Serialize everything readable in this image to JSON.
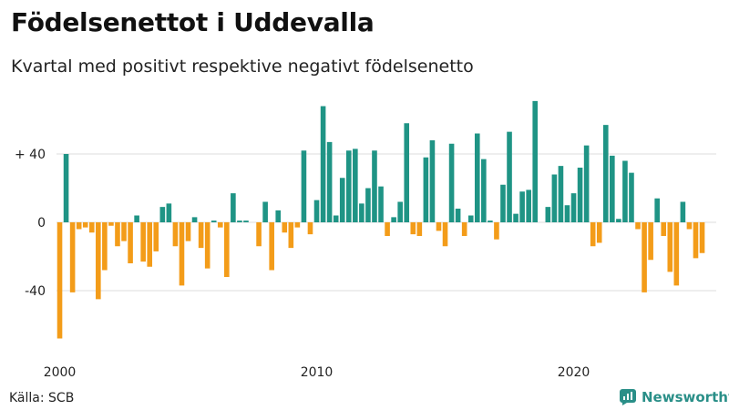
{
  "header": {
    "title": "Födelsenettot i Uddevalla",
    "subtitle": "Kvartal med positivt respektive negativt födelsenetto"
  },
  "footer": {
    "source": "Källa: SCB",
    "brand": "Newsworthy"
  },
  "colors": {
    "positive": "#1f9485",
    "negative": "#f39c19",
    "grid": "#dddddd",
    "brand": "#2a8f88"
  },
  "chart_data": {
    "type": "bar",
    "title": "Födelsenettot i Uddevalla",
    "subtitle": "Kvartal med positivt respektive negativt födelsenetto",
    "xlabel": "",
    "ylabel": "",
    "ylim": [
      -70,
      72
    ],
    "y_ticks": [
      {
        "value": 40,
        "label": "+ 40"
      },
      {
        "value": 0,
        "label": "0"
      },
      {
        "value": -40,
        "label": "-40"
      }
    ],
    "x_ticks": [
      {
        "year": 2000,
        "label": "2000"
      },
      {
        "year": 2010,
        "label": "2010"
      },
      {
        "year": 2020,
        "label": "2020"
      }
    ],
    "start_year": 2000,
    "start_quarter": 1,
    "values": [
      -68,
      40,
      -41,
      -4,
      -3,
      -6,
      -45,
      -28,
      -2,
      -14,
      -11,
      -24,
      4,
      -23,
      -26,
      -17,
      9,
      11,
      -14,
      -37,
      -11,
      3,
      -15,
      -27,
      1,
      -3,
      -32,
      17,
      1,
      1,
      0,
      -14,
      12,
      -28,
      7,
      -6,
      -15,
      -3,
      42,
      -7,
      13,
      68,
      47,
      4,
      26,
      42,
      43,
      11,
      20,
      42,
      21,
      -8,
      3,
      12,
      58,
      -7,
      -8,
      38,
      48,
      -5,
      -14,
      46,
      8,
      -8,
      4,
      52,
      37,
      1,
      -10,
      22,
      53,
      5,
      18,
      19,
      71,
      0,
      9,
      28,
      33,
      10,
      17,
      32,
      45,
      -14,
      -12,
      57,
      39,
      2,
      36,
      29,
      -4,
      -41,
      -22,
      14,
      -8,
      -29,
      -37,
      12,
      -4,
      -21,
      -18
    ]
  }
}
